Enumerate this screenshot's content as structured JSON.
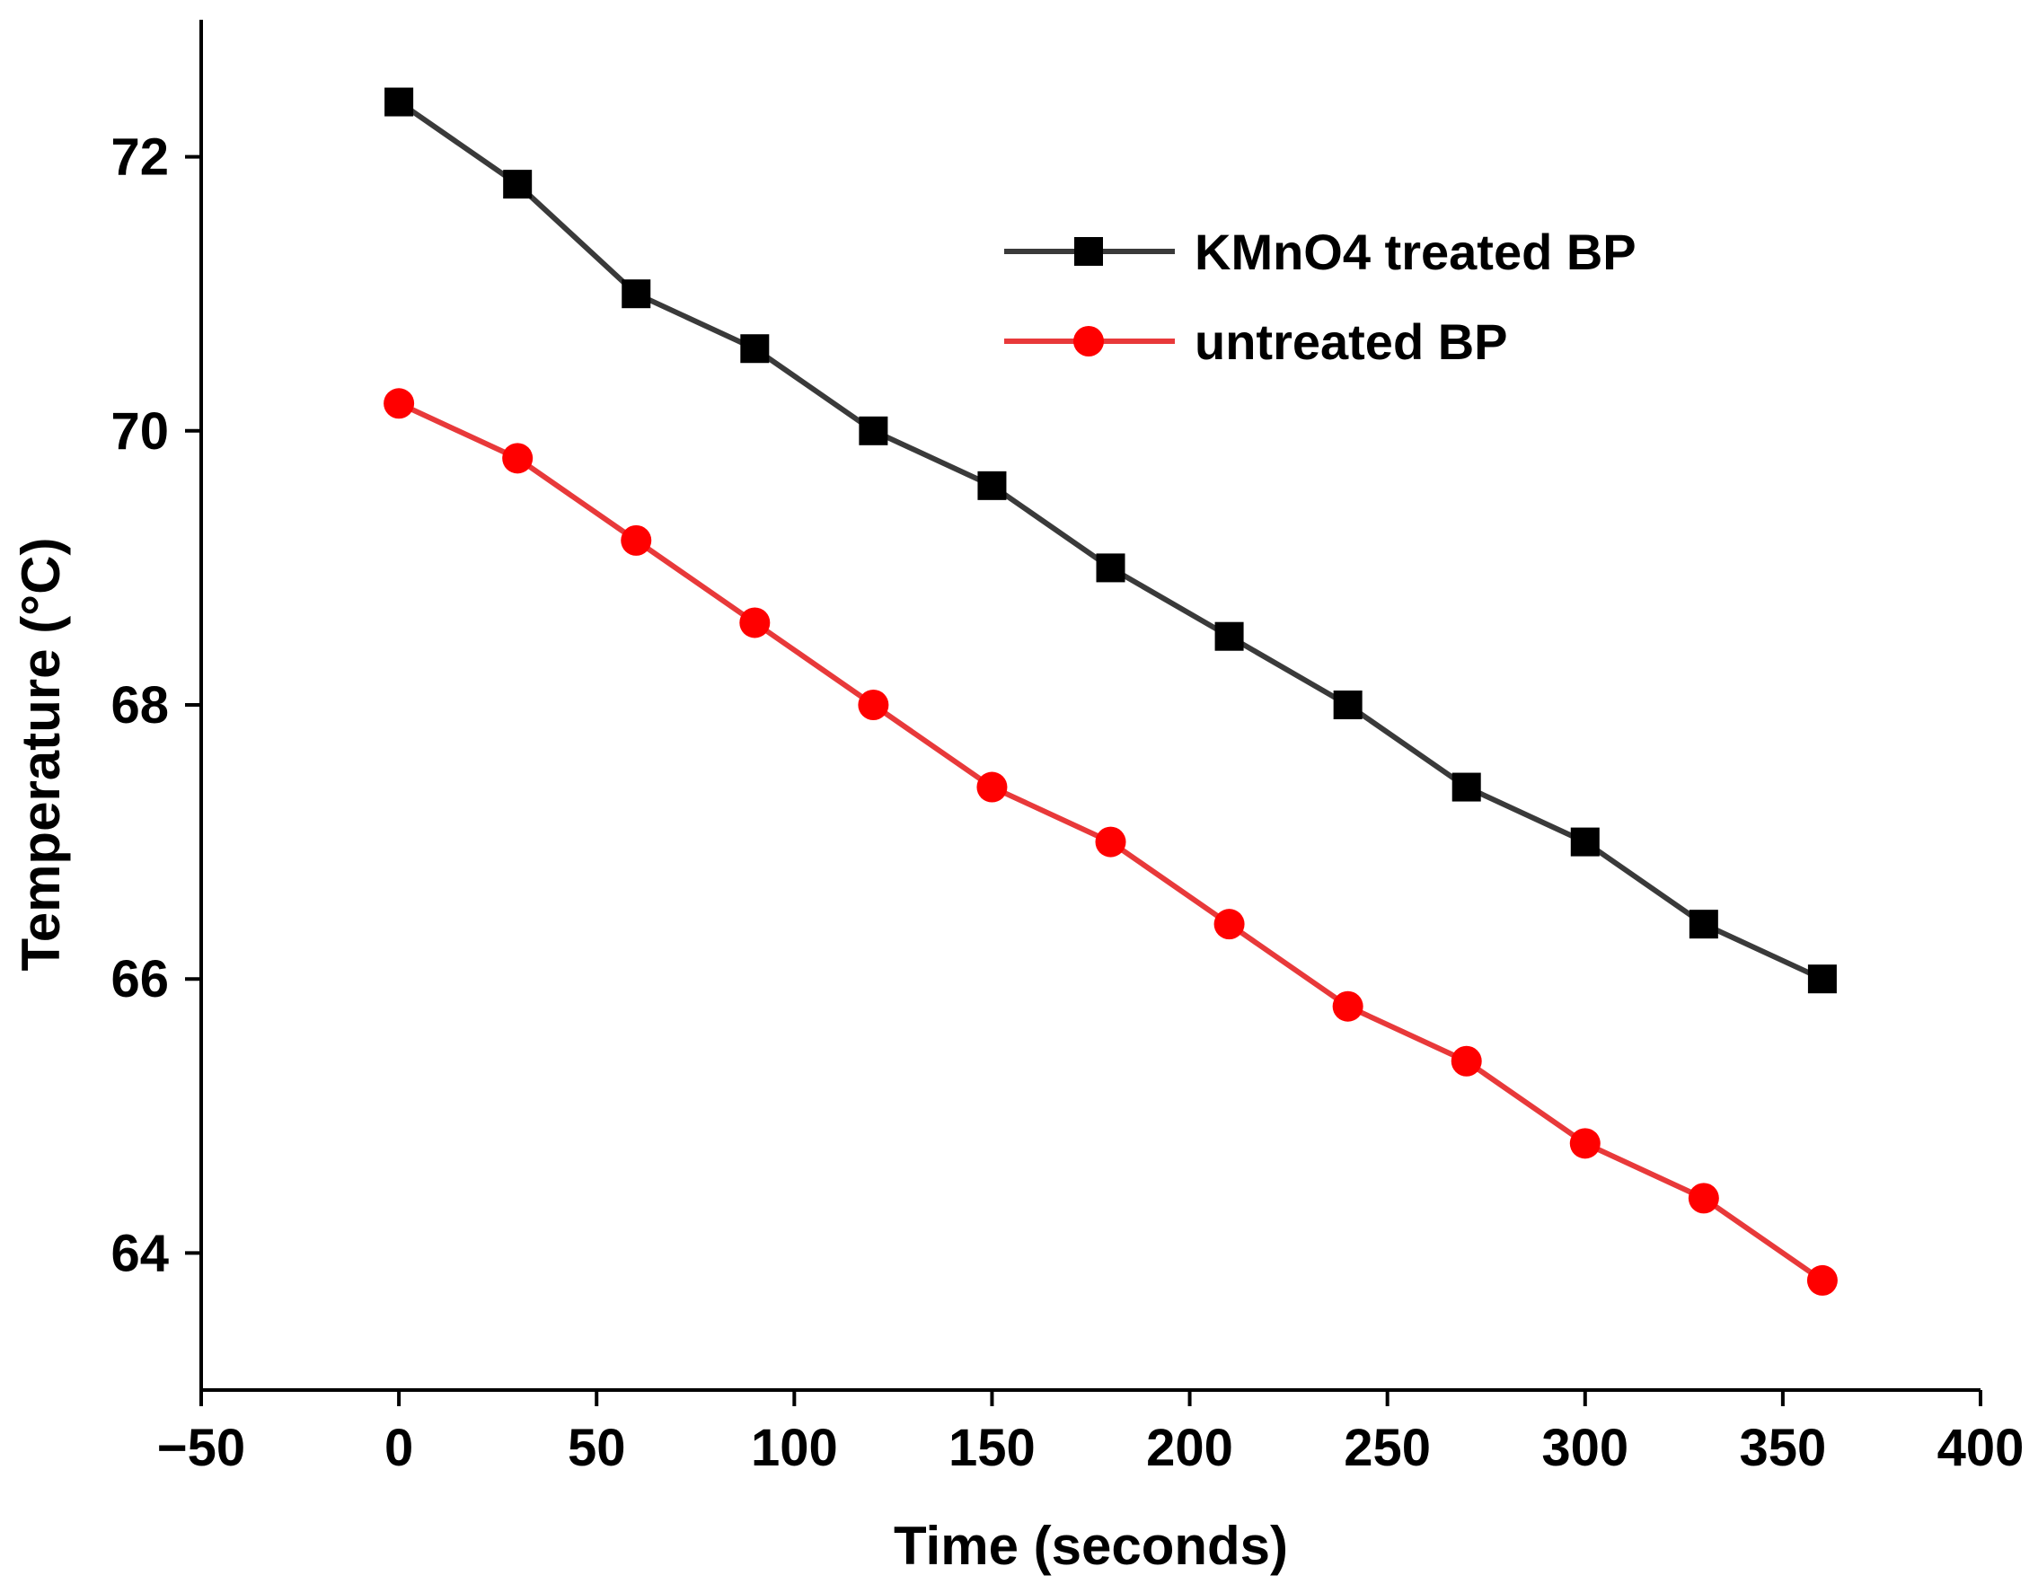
{
  "chart_data": {
    "type": "line",
    "title": "",
    "xlabel": "Time (seconds)",
    "ylabel": "Temperature (°C)",
    "xlim": [
      -50,
      400
    ],
    "ylim": [
      63.0,
      73.0
    ],
    "xticks": [
      -50,
      0,
      50,
      100,
      150,
      200,
      250,
      300,
      350,
      400
    ],
    "xtick_labels": [
      "−50",
      "0",
      "50",
      "100",
      "150",
      "200",
      "250",
      "300",
      "350",
      "400"
    ],
    "yticks": [
      64,
      66,
      68,
      70,
      72
    ],
    "ytick_labels": [
      "64",
      "66",
      "68",
      "70",
      "72"
    ],
    "grid": false,
    "legend_position": "top-right",
    "x": [
      0,
      30,
      60,
      90,
      120,
      150,
      180,
      210,
      240,
      270,
      300,
      330,
      360
    ],
    "series": [
      {
        "name": "KMnO4 treated BP",
        "color": "#3a3a3a",
        "marker_color": "#000000",
        "marker": "square",
        "values": [
          72.4,
          71.8,
          71.0,
          70.6,
          70.0,
          69.6,
          69.0,
          68.5,
          68.0,
          67.4,
          67.0,
          66.4,
          66.0
        ]
      },
      {
        "name": "untreated BP",
        "color": "#e8393a",
        "marker_color": "#ff0000",
        "marker": "circle",
        "values": [
          70.2,
          69.8,
          69.2,
          68.6,
          68.0,
          67.4,
          67.0,
          66.4,
          65.8,
          65.4,
          64.8,
          64.4,
          63.8
        ]
      }
    ]
  }
}
